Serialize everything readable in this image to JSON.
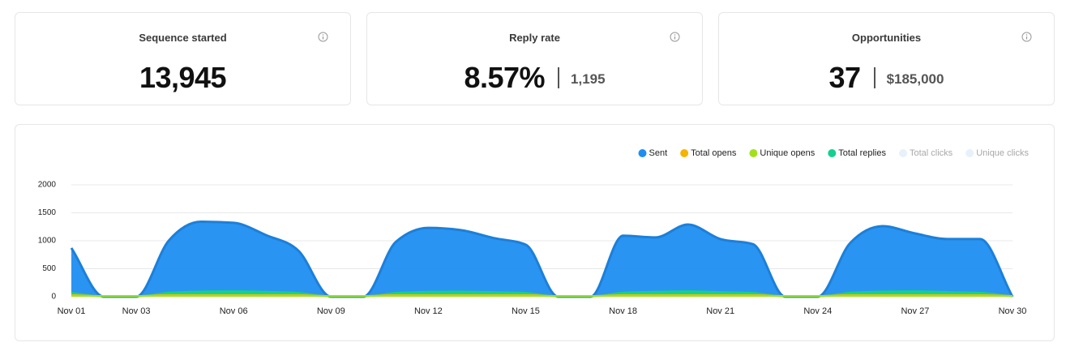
{
  "cards": [
    {
      "title": "Sequence started",
      "value": "13,945"
    },
    {
      "title": "Reply rate",
      "value": "8.57%",
      "secondary": "1,195"
    },
    {
      "title": "Opportunities",
      "value": "37",
      "secondary": "$185,000"
    }
  ],
  "chart_data": {
    "type": "area",
    "categories": [
      "Nov 01",
      null,
      "Nov 03",
      null,
      null,
      "Nov 06",
      null,
      null,
      "Nov 09",
      null,
      null,
      "Nov 12",
      null,
      null,
      "Nov 15",
      null,
      null,
      "Nov 18",
      null,
      null,
      "Nov 21",
      null,
      null,
      "Nov 24",
      null,
      null,
      "Nov 27",
      null,
      null,
      "Nov 30"
    ],
    "series": [
      {
        "name": "Sent",
        "color": "#1f8ef1",
        "values": [
          870,
          0,
          0,
          1000,
          1340,
          1320,
          1100,
          820,
          0,
          0,
          980,
          1230,
          1190,
          1050,
          930,
          0,
          0,
          1090,
          1060,
          1290,
          1030,
          940,
          0,
          0,
          960,
          1260,
          1130,
          1030,
          1030,
          0
        ]
      },
      {
        "name": "Total opens",
        "color": "#f5b400",
        "values": [
          30,
          15,
          15,
          30,
          30,
          30,
          30,
          30,
          15,
          15,
          30,
          30,
          30,
          30,
          30,
          15,
          15,
          30,
          30,
          30,
          30,
          30,
          15,
          15,
          30,
          30,
          30,
          30,
          30,
          15
        ]
      },
      {
        "name": "Unique opens",
        "color": "#a3e01c",
        "values": [
          20,
          10,
          10,
          20,
          20,
          20,
          20,
          20,
          10,
          10,
          20,
          20,
          20,
          20,
          20,
          10,
          10,
          20,
          20,
          20,
          20,
          20,
          10,
          10,
          20,
          20,
          20,
          20,
          20,
          10
        ]
      },
      {
        "name": "Total replies",
        "color": "#12d18e",
        "values": [
          70,
          5,
          5,
          75,
          95,
          100,
          90,
          70,
          5,
          5,
          70,
          90,
          95,
          85,
          70,
          5,
          5,
          75,
          90,
          100,
          85,
          70,
          5,
          5,
          75,
          95,
          100,
          85,
          75,
          5
        ]
      },
      {
        "name": "Total clicks",
        "color": "#e6f1fb",
        "hidden": true
      },
      {
        "name": "Unique clicks",
        "color": "#e6f1fb",
        "hidden": true
      }
    ],
    "ylim": [
      0,
      2000
    ],
    "yticks": [
      0,
      500,
      1000,
      1500,
      2000
    ],
    "grid": true,
    "legend": "top-right"
  }
}
